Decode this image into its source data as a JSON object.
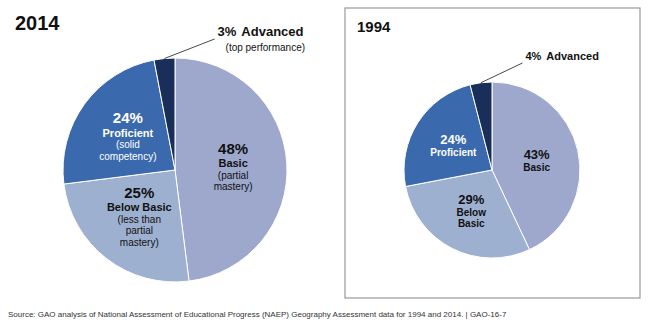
{
  "chart_data": [
    {
      "type": "pie",
      "title": "2014",
      "categories": [
        "Basic",
        "Below Basic",
        "Proficient",
        "Advanced"
      ],
      "values": [
        48,
        25,
        24,
        3
      ],
      "value_labels": [
        "48%",
        "25%",
        "24%",
        "3%"
      ],
      "annotations": [
        "(partial mastery)",
        "(less than partial mastery)",
        "(solid competency)",
        "(top performance)"
      ],
      "colors": [
        "#9da8cc",
        "#9eb0d0",
        "#3a6aad",
        "#1a2e5a"
      ],
      "data_labels": true
    },
    {
      "type": "pie",
      "title": "1994",
      "categories": [
        "Basic",
        "Below Basic",
        "Proficient",
        "Advanced"
      ],
      "values": [
        43,
        29,
        24,
        4
      ],
      "value_labels": [
        "43%",
        "29%",
        "24%",
        "4%"
      ],
      "colors": [
        "#9da8cc",
        "#9eb0d0",
        "#3a6aad",
        "#1a2e5a"
      ],
      "data_labels": true
    }
  ],
  "source": "Source: GAO analysis of National Assessment of Educational Progress (NAEP) Geography Assessment data for 1994 and 2014.  |  GAO-16-7"
}
